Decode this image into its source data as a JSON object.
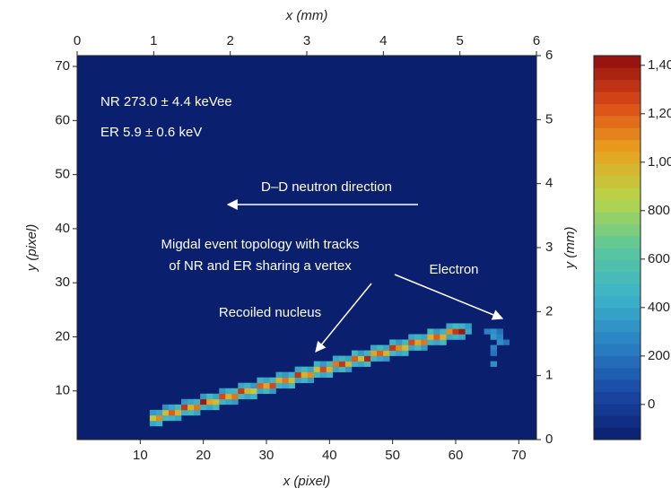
{
  "chart_data": {
    "type": "heatmap",
    "x_label": "x (pixel)",
    "x2_label": "x (mm)",
    "y_label": "y (pixel)",
    "y2_label": "y (mm)",
    "xlim": [
      0,
      72.8
    ],
    "xticks": [
      10,
      20,
      30,
      40,
      50,
      60,
      70
    ],
    "x2lim": [
      0,
      6
    ],
    "x2ticks": [
      0,
      1,
      2,
      3,
      4,
      5,
      6
    ],
    "ylim": [
      1,
      72
    ],
    "yticks": [
      10,
      20,
      30,
      40,
      50,
      60,
      70
    ],
    "y2lim": [
      0,
      6
    ],
    "y2ticks": [
      0,
      1,
      2,
      3,
      4,
      5,
      6
    ],
    "clim": [
      -145,
      1440
    ],
    "cticks": [
      0,
      200,
      400,
      600,
      800,
      {
        "value": 1000,
        "label": "1,000"
      },
      {
        "value": 1200,
        "label": "1,200"
      },
      {
        "value": 1400,
        "label": "1,400"
      }
    ],
    "colormap": [
      "#0a1f6e",
      "#1a48a6",
      "#2a82c4",
      "#3cb3c8",
      "#5cc79c",
      "#b6d64a",
      "#e8a41e",
      "#dc4a18",
      "#8e0c0c"
    ],
    "annotations": [
      "NR 273.0 ± 4.4 keVee",
      "ER 5.9 ± 0.6 keV",
      "D–D neutron direction",
      "Migdal event topology with tracks",
      "of NR and ER sharing a vertex",
      "Electron",
      "Recoiled nucleus"
    ],
    "cells": [
      [
        12,
        4,
        400
      ],
      [
        12,
        5,
        900
      ],
      [
        12,
        6,
        350
      ],
      [
        13,
        4,
        450
      ],
      [
        13,
        5,
        1100
      ],
      [
        13,
        6,
        400
      ],
      [
        14,
        5,
        500
      ],
      [
        14,
        6,
        950
      ],
      [
        14,
        7,
        300
      ],
      [
        15,
        5,
        450
      ],
      [
        15,
        6,
        1200
      ],
      [
        15,
        7,
        400
      ],
      [
        16,
        5,
        400
      ],
      [
        16,
        6,
        1000
      ],
      [
        16,
        7,
        500
      ],
      [
        17,
        6,
        450
      ],
      [
        17,
        7,
        1300
      ],
      [
        17,
        8,
        350
      ],
      [
        18,
        6,
        500
      ],
      [
        18,
        7,
        1000
      ],
      [
        18,
        8,
        400
      ],
      [
        19,
        6,
        400
      ],
      [
        19,
        7,
        1150
      ],
      [
        19,
        8,
        450
      ],
      [
        20,
        7,
        450
      ],
      [
        20,
        8,
        1400
      ],
      [
        20,
        9,
        350
      ],
      [
        21,
        7,
        400
      ],
      [
        21,
        8,
        1050
      ],
      [
        21,
        9,
        500
      ],
      [
        22,
        7,
        500
      ],
      [
        22,
        8,
        950
      ],
      [
        22,
        9,
        400
      ],
      [
        23,
        8,
        450
      ],
      [
        23,
        9,
        1250
      ],
      [
        23,
        10,
        350
      ],
      [
        24,
        8,
        400
      ],
      [
        24,
        9,
        1000
      ],
      [
        24,
        10,
        450
      ],
      [
        25,
        8,
        350
      ],
      [
        25,
        9,
        1150
      ],
      [
        25,
        10,
        500
      ],
      [
        26,
        9,
        500
      ],
      [
        26,
        10,
        1300
      ],
      [
        26,
        11,
        400
      ],
      [
        27,
        9,
        400
      ],
      [
        27,
        10,
        1000
      ],
      [
        27,
        11,
        450
      ],
      [
        28,
        9,
        450
      ],
      [
        28,
        10,
        900
      ],
      [
        28,
        11,
        350
      ],
      [
        29,
        10,
        400
      ],
      [
        29,
        11,
        1200
      ],
      [
        29,
        12,
        450
      ],
      [
        30,
        10,
        500
      ],
      [
        30,
        11,
        1050
      ],
      [
        30,
        12,
        400
      ],
      [
        31,
        10,
        350
      ],
      [
        31,
        11,
        1250
      ],
      [
        31,
        12,
        500
      ],
      [
        32,
        11,
        450
      ],
      [
        32,
        12,
        1000
      ],
      [
        32,
        13,
        400
      ],
      [
        33,
        11,
        400
      ],
      [
        33,
        12,
        1150
      ],
      [
        33,
        13,
        350
      ],
      [
        34,
        11,
        500
      ],
      [
        34,
        12,
        950
      ],
      [
        34,
        13,
        450
      ],
      [
        35,
        12,
        400
      ],
      [
        35,
        13,
        1300
      ],
      [
        35,
        14,
        400
      ],
      [
        36,
        12,
        450
      ],
      [
        36,
        13,
        1000
      ],
      [
        36,
        14,
        500
      ],
      [
        37,
        12,
        350
      ],
      [
        37,
        13,
        1100
      ],
      [
        37,
        14,
        400
      ],
      [
        38,
        13,
        500
      ],
      [
        38,
        14,
        950
      ],
      [
        38,
        15,
        450
      ],
      [
        39,
        13,
        400
      ],
      [
        39,
        14,
        1250
      ],
      [
        39,
        15,
        350
      ],
      [
        40,
        13,
        450
      ],
      [
        40,
        14,
        1000
      ],
      [
        40,
        15,
        500
      ],
      [
        41,
        14,
        400
      ],
      [
        41,
        15,
        1150
      ],
      [
        41,
        16,
        400
      ],
      [
        42,
        14,
        500
      ],
      [
        42,
        15,
        1300
      ],
      [
        42,
        16,
        450
      ],
      [
        43,
        14,
        350
      ],
      [
        43,
        15,
        1000
      ],
      [
        43,
        16,
        400
      ],
      [
        44,
        15,
        450
      ],
      [
        44,
        16,
        1200
      ],
      [
        44,
        17,
        500
      ],
      [
        45,
        15,
        400
      ],
      [
        45,
        16,
        950
      ],
      [
        45,
        17,
        350
      ],
      [
        46,
        15,
        500
      ],
      [
        46,
        16,
        1350
      ],
      [
        46,
        17,
        450
      ],
      [
        47,
        16,
        450
      ],
      [
        47,
        17,
        1050
      ],
      [
        47,
        18,
        400
      ],
      [
        48,
        16,
        400
      ],
      [
        48,
        17,
        1200
      ],
      [
        48,
        18,
        500
      ],
      [
        49,
        16,
        350
      ],
      [
        49,
        17,
        1000
      ],
      [
        49,
        18,
        400
      ],
      [
        50,
        17,
        500
      ],
      [
        50,
        18,
        1300
      ],
      [
        50,
        19,
        450
      ],
      [
        51,
        17,
        400
      ],
      [
        51,
        18,
        1100
      ],
      [
        51,
        19,
        350
      ],
      [
        52,
        17,
        450
      ],
      [
        52,
        18,
        950
      ],
      [
        52,
        19,
        500
      ],
      [
        53,
        18,
        400
      ],
      [
        53,
        19,
        1250
      ],
      [
        53,
        20,
        400
      ],
      [
        54,
        18,
        500
      ],
      [
        54,
        19,
        1050
      ],
      [
        54,
        20,
        450
      ],
      [
        55,
        18,
        350
      ],
      [
        55,
        19,
        1150
      ],
      [
        55,
        20,
        400
      ],
      [
        56,
        19,
        450
      ],
      [
        56,
        20,
        1000
      ],
      [
        56,
        21,
        500
      ],
      [
        57,
        19,
        400
      ],
      [
        57,
        20,
        1200
      ],
      [
        57,
        21,
        350
      ],
      [
        58,
        19,
        500
      ],
      [
        58,
        20,
        1000
      ],
      [
        58,
        21,
        450
      ],
      [
        59,
        20,
        400
      ],
      [
        59,
        21,
        1100
      ],
      [
        59,
        22,
        400
      ],
      [
        60,
        20,
        450
      ],
      [
        60,
        21,
        1300
      ],
      [
        60,
        22,
        500
      ],
      [
        61,
        20,
        400
      ],
      [
        61,
        21,
        1400
      ],
      [
        61,
        22,
        450
      ],
      [
        62,
        21,
        400
      ],
      [
        62,
        22,
        350
      ],
      [
        65,
        21,
        250
      ],
      [
        66,
        21,
        300
      ],
      [
        67,
        21,
        200
      ],
      [
        66,
        20,
        350
      ],
      [
        67,
        20,
        250
      ],
      [
        68,
        19,
        200
      ],
      [
        67,
        19,
        300
      ],
      [
        66,
        18,
        250
      ],
      [
        66,
        17,
        200
      ],
      [
        66,
        15,
        300
      ]
    ]
  }
}
